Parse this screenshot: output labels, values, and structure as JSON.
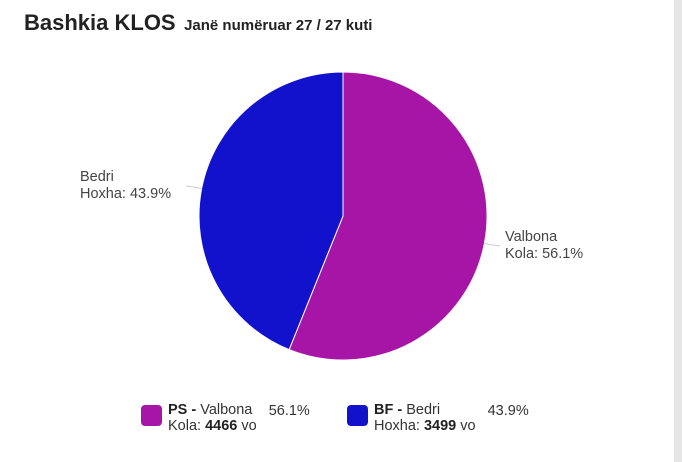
{
  "header": {
    "title": "Bashkia KLOS",
    "subtitle": "Janë numëruar 27 / 27 kuti"
  },
  "colors": {
    "ps": "#a615a6",
    "bf": "#1212cc"
  },
  "chart_data": {
    "type": "pie",
    "slices": [
      {
        "label": "Valbona Kola",
        "label_lines": [
          "Valbona",
          "Kola: 56.1%"
        ],
        "value": 56.1,
        "color": "#a615a6"
      },
      {
        "label": "Bedri Hoxha",
        "label_lines": [
          "Bedri",
          "Hoxha: 43.9%"
        ],
        "value": 43.9,
        "color": "#1212cc"
      }
    ]
  },
  "legend": [
    {
      "party": "PS",
      "sep": " - ",
      "first": "Valbona",
      "last": "Kola: ",
      "votes": "4466",
      "unit": " vo",
      "pct": "56.1%",
      "color": "#a615a6"
    },
    {
      "party": "BF",
      "sep": " - ",
      "first": "Bedri",
      "last": "Hoxha: ",
      "votes": "3499",
      "unit": " vo",
      "pct": "43.9%",
      "color": "#1212cc"
    }
  ]
}
